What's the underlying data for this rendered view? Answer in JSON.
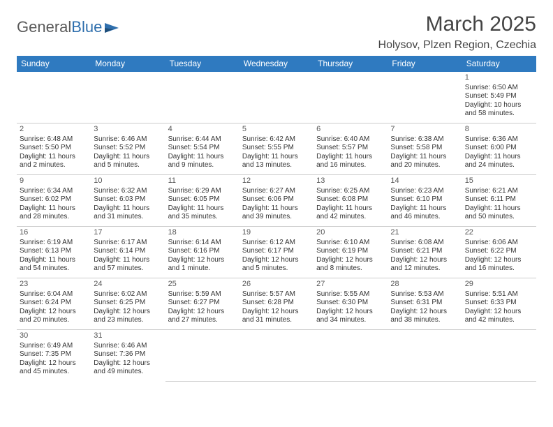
{
  "logo": {
    "text1": "General",
    "text2": "Blue"
  },
  "title": "March 2025",
  "location": "Holysov, Plzen Region, Czechia",
  "colors": {
    "header_bg": "#2f7ac0",
    "header_text": "#ffffff",
    "border": "#2f7ac0",
    "text": "#333333",
    "logo_gray": "#5a5a5a",
    "logo_blue": "#2f6fad"
  },
  "weekdays": [
    "Sunday",
    "Monday",
    "Tuesday",
    "Wednesday",
    "Thursday",
    "Friday",
    "Saturday"
  ],
  "weeks": [
    [
      null,
      null,
      null,
      null,
      null,
      null,
      {
        "day": "1",
        "sunrise": "Sunrise: 6:50 AM",
        "sunset": "Sunset: 5:49 PM",
        "daylight": "Daylight: 10 hours and 58 minutes."
      }
    ],
    [
      {
        "day": "2",
        "sunrise": "Sunrise: 6:48 AM",
        "sunset": "Sunset: 5:50 PM",
        "daylight": "Daylight: 11 hours and 2 minutes."
      },
      {
        "day": "3",
        "sunrise": "Sunrise: 6:46 AM",
        "sunset": "Sunset: 5:52 PM",
        "daylight": "Daylight: 11 hours and 5 minutes."
      },
      {
        "day": "4",
        "sunrise": "Sunrise: 6:44 AM",
        "sunset": "Sunset: 5:54 PM",
        "daylight": "Daylight: 11 hours and 9 minutes."
      },
      {
        "day": "5",
        "sunrise": "Sunrise: 6:42 AM",
        "sunset": "Sunset: 5:55 PM",
        "daylight": "Daylight: 11 hours and 13 minutes."
      },
      {
        "day": "6",
        "sunrise": "Sunrise: 6:40 AM",
        "sunset": "Sunset: 5:57 PM",
        "daylight": "Daylight: 11 hours and 16 minutes."
      },
      {
        "day": "7",
        "sunrise": "Sunrise: 6:38 AM",
        "sunset": "Sunset: 5:58 PM",
        "daylight": "Daylight: 11 hours and 20 minutes."
      },
      {
        "day": "8",
        "sunrise": "Sunrise: 6:36 AM",
        "sunset": "Sunset: 6:00 PM",
        "daylight": "Daylight: 11 hours and 24 minutes."
      }
    ],
    [
      {
        "day": "9",
        "sunrise": "Sunrise: 6:34 AM",
        "sunset": "Sunset: 6:02 PM",
        "daylight": "Daylight: 11 hours and 28 minutes."
      },
      {
        "day": "10",
        "sunrise": "Sunrise: 6:32 AM",
        "sunset": "Sunset: 6:03 PM",
        "daylight": "Daylight: 11 hours and 31 minutes."
      },
      {
        "day": "11",
        "sunrise": "Sunrise: 6:29 AM",
        "sunset": "Sunset: 6:05 PM",
        "daylight": "Daylight: 11 hours and 35 minutes."
      },
      {
        "day": "12",
        "sunrise": "Sunrise: 6:27 AM",
        "sunset": "Sunset: 6:06 PM",
        "daylight": "Daylight: 11 hours and 39 minutes."
      },
      {
        "day": "13",
        "sunrise": "Sunrise: 6:25 AM",
        "sunset": "Sunset: 6:08 PM",
        "daylight": "Daylight: 11 hours and 42 minutes."
      },
      {
        "day": "14",
        "sunrise": "Sunrise: 6:23 AM",
        "sunset": "Sunset: 6:10 PM",
        "daylight": "Daylight: 11 hours and 46 minutes."
      },
      {
        "day": "15",
        "sunrise": "Sunrise: 6:21 AM",
        "sunset": "Sunset: 6:11 PM",
        "daylight": "Daylight: 11 hours and 50 minutes."
      }
    ],
    [
      {
        "day": "16",
        "sunrise": "Sunrise: 6:19 AM",
        "sunset": "Sunset: 6:13 PM",
        "daylight": "Daylight: 11 hours and 54 minutes."
      },
      {
        "day": "17",
        "sunrise": "Sunrise: 6:17 AM",
        "sunset": "Sunset: 6:14 PM",
        "daylight": "Daylight: 11 hours and 57 minutes."
      },
      {
        "day": "18",
        "sunrise": "Sunrise: 6:14 AM",
        "sunset": "Sunset: 6:16 PM",
        "daylight": "Daylight: 12 hours and 1 minute."
      },
      {
        "day": "19",
        "sunrise": "Sunrise: 6:12 AM",
        "sunset": "Sunset: 6:17 PM",
        "daylight": "Daylight: 12 hours and 5 minutes."
      },
      {
        "day": "20",
        "sunrise": "Sunrise: 6:10 AM",
        "sunset": "Sunset: 6:19 PM",
        "daylight": "Daylight: 12 hours and 8 minutes."
      },
      {
        "day": "21",
        "sunrise": "Sunrise: 6:08 AM",
        "sunset": "Sunset: 6:21 PM",
        "daylight": "Daylight: 12 hours and 12 minutes."
      },
      {
        "day": "22",
        "sunrise": "Sunrise: 6:06 AM",
        "sunset": "Sunset: 6:22 PM",
        "daylight": "Daylight: 12 hours and 16 minutes."
      }
    ],
    [
      {
        "day": "23",
        "sunrise": "Sunrise: 6:04 AM",
        "sunset": "Sunset: 6:24 PM",
        "daylight": "Daylight: 12 hours and 20 minutes."
      },
      {
        "day": "24",
        "sunrise": "Sunrise: 6:02 AM",
        "sunset": "Sunset: 6:25 PM",
        "daylight": "Daylight: 12 hours and 23 minutes."
      },
      {
        "day": "25",
        "sunrise": "Sunrise: 5:59 AM",
        "sunset": "Sunset: 6:27 PM",
        "daylight": "Daylight: 12 hours and 27 minutes."
      },
      {
        "day": "26",
        "sunrise": "Sunrise: 5:57 AM",
        "sunset": "Sunset: 6:28 PM",
        "daylight": "Daylight: 12 hours and 31 minutes."
      },
      {
        "day": "27",
        "sunrise": "Sunrise: 5:55 AM",
        "sunset": "Sunset: 6:30 PM",
        "daylight": "Daylight: 12 hours and 34 minutes."
      },
      {
        "day": "28",
        "sunrise": "Sunrise: 5:53 AM",
        "sunset": "Sunset: 6:31 PM",
        "daylight": "Daylight: 12 hours and 38 minutes."
      },
      {
        "day": "29",
        "sunrise": "Sunrise: 5:51 AM",
        "sunset": "Sunset: 6:33 PM",
        "daylight": "Daylight: 12 hours and 42 minutes."
      }
    ],
    [
      {
        "day": "30",
        "sunrise": "Sunrise: 6:49 AM",
        "sunset": "Sunset: 7:35 PM",
        "daylight": "Daylight: 12 hours and 45 minutes."
      },
      {
        "day": "31",
        "sunrise": "Sunrise: 6:46 AM",
        "sunset": "Sunset: 7:36 PM",
        "daylight": "Daylight: 12 hours and 49 minutes."
      },
      null,
      null,
      null,
      null,
      null
    ]
  ]
}
